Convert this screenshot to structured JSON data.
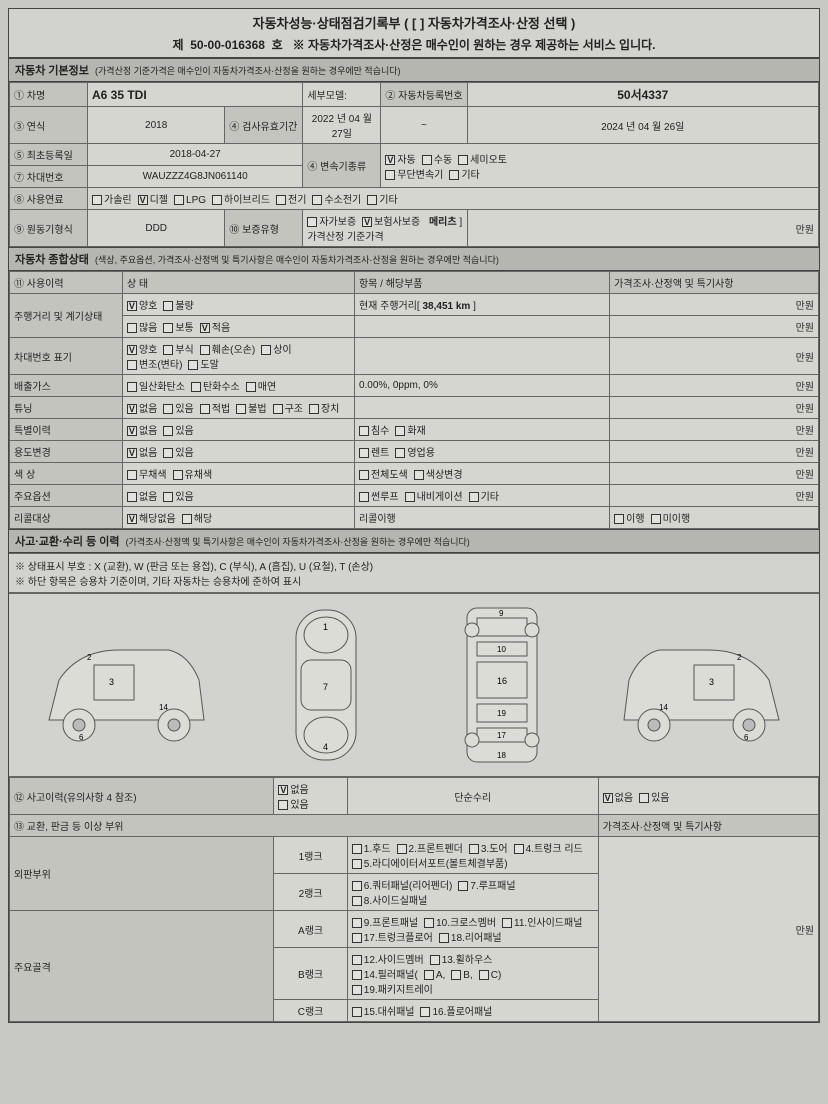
{
  "header": {
    "title": "자동차성능·상태점검기록부 ( [   ] 자동차가격조사·산정 선택 )",
    "doc_no_prefix": "제",
    "doc_no": "50-00-016368",
    "doc_no_suffix": "호",
    "subtitle_note": "※ 자동차가격조사·산정은 매수인이 원하는 경우 제공하는 서비스 입니다."
  },
  "section_basic": {
    "heading": "자동차 기본정보",
    "heading_note": "(가격산정 기준가격은 매수인이 자동차가격조사·산정을 원하는 경우에만 적습니다)",
    "row1": {
      "lbl1": "① 차명",
      "car_name": "A6 35 TDI",
      "lbl2": "세부모델:",
      "lbl3": "② 자동차등록번호",
      "reg_no": "50서4337"
    },
    "row2": {
      "lbl1": "③ 연식",
      "year": "2018",
      "lbl2": "④ 검사유효기간",
      "from": "2022 년 04 월 27일",
      "tilde": "~",
      "to": "2024 년 04 월 26일"
    },
    "row3": {
      "lbl1": "⑤ 최초등록일",
      "first_reg": "2018-04-27",
      "lbl2": "④ 변속기종류",
      "opts": [
        "자동",
        "수동",
        "세미오토",
        "무단변속기",
        "기타"
      ],
      "checked": "자동"
    },
    "row4": {
      "lbl1": "⑦ 차대번호",
      "vin": "WAUZZZ4G8JN061140"
    },
    "row5": {
      "lbl1": "⑧ 사용연료",
      "opts": [
        "가솔린",
        "디젤",
        "LPG",
        "하이브리드",
        "전기",
        "수소전기",
        "기타"
      ],
      "checked": "디젤"
    },
    "row6": {
      "lbl1": "⑨ 원동기형식",
      "engine": "DDD",
      "lbl2": "⑩ 보증유형",
      "opts": [
        "자가보증",
        "보험사보증"
      ],
      "checked": "보험사보증",
      "insurer_lbl": "메리츠",
      "price_lbl": "] 가격산정 기준가격",
      "won": "만원"
    }
  },
  "section_state": {
    "heading": "자동차 종합상태",
    "heading_note": "(색상, 주요옵션, 가격조사·산정액 및 특기사항은 매수인이 자동차가격조사·산정을 원하는 경우에만 적습니다)",
    "cols": {
      "c1": "⑪ 사용이력",
      "c2": "상  태",
      "c3": "항목 / 해당부품",
      "c4": "가격조사·산정액 및 특기사항"
    },
    "rows": [
      {
        "lbl": "주행거리 및 계기상태",
        "line1_opts": [
          "양호",
          "불량"
        ],
        "line1_checked": "양호",
        "line1_right_lbl": "현재 주행거리[",
        "line1_right_val": "38,451 km",
        "line1_right_suf": "]",
        "price": "만원",
        "line2_opts": [
          "많음",
          "보통",
          "적음"
        ],
        "line2_checked": "적음",
        "price2": "만원"
      },
      {
        "lbl": "차대번호 표기",
        "opts": [
          "양호",
          "부식",
          "훼손(오손)",
          "상이",
          "변조(변타)",
          "도말"
        ],
        "checked": "양호",
        "price": "만원"
      },
      {
        "lbl": "배출가스",
        "opts": [
          "일산화탄소",
          "탄화수소",
          "매연"
        ],
        "right": "0.00%,  0ppm,  0%",
        "price": "만원"
      },
      {
        "lbl": "튜닝",
        "opts": [
          "없음",
          "있음",
          "적법",
          "불법",
          "구조",
          "장치"
        ],
        "checked": "없음",
        "price": "만원"
      },
      {
        "lbl": "특별이력",
        "opts": [
          "없음",
          "있음"
        ],
        "checked": "없음",
        "right_opts": [
          "침수",
          "화재"
        ],
        "price": "만원"
      },
      {
        "lbl": "용도변경",
        "opts": [
          "없음",
          "있음"
        ],
        "checked": "없음",
        "right_opts": [
          "렌트",
          "영업용"
        ],
        "price": "만원"
      },
      {
        "lbl": "색  상",
        "opts": [
          "무채색",
          "유채색"
        ],
        "right_opts": [
          "전체도색",
          "색상변경"
        ],
        "price": "만원"
      },
      {
        "lbl": "주요옵션",
        "opts": [
          "없음",
          "있음"
        ],
        "right_opts": [
          "썬루프",
          "내비게이션",
          "기타"
        ],
        "price": "만원"
      },
      {
        "lbl": "리콜대상",
        "opts": [
          "해당없음",
          "해당"
        ],
        "checked": "해당없음",
        "right_lbl": "리콜이행",
        "price_opts": [
          "이행",
          "미이행"
        ]
      }
    ]
  },
  "section_history": {
    "heading": "사고·교환·수리 등 이력",
    "heading_note": "(가격조사·산정액 및 특기사항은 매수인이 자동차가격조사·산정을 원하는 경우에만 적습니다)",
    "legend1": "※ 상태표시 부호 : X (교환), W (판금 또는 용접), C (부식), A (흠집), U (요철), T (손상)",
    "legend2": "※ 하단 항목은 승용차 기준이며, 기타 자동차는 승용차에 준하여 표시",
    "row_accident": {
      "lbl": "⑫ 사고이력(유의사항 4 참조)",
      "opts": [
        "없음",
        "있음"
      ],
      "checked": "없음",
      "mid": "단순수리",
      "right_opts": [
        "없음",
        "있음"
      ],
      "right_checked": "없음"
    },
    "row_exchange_header": {
      "lbl": "⑬ 교환, 판금 등 이상 부위",
      "right": "가격조사·산정액 및 특기사항"
    },
    "outer": {
      "lbl": "외판부위",
      "rank1_lbl": "1랭크",
      "rank1_items": [
        "1.후드",
        "2.프론트펜더",
        "3.도어",
        "4.트렁크 리드",
        "5.라디에이터서포트(볼트체결부품)"
      ],
      "rank2_lbl": "2랭크",
      "rank2_items": [
        "6.쿼터패널(리어펜더)",
        "7.루프패널",
        "8.사이드실패널"
      ]
    },
    "frame": {
      "lbl": "주요골격",
      "a_lbl": "A랭크",
      "a_items": [
        "9.프론트패널",
        "10.크로스멤버",
        "11.인사이드패널",
        "17.트렁크플로어",
        "18.리어패널"
      ],
      "b_lbl": "B랭크",
      "b_items_line1": [
        "12.사이드멤버",
        "13.휠하우스"
      ],
      "b_items_line2_prefix": "14.필러패널(",
      "b_items_line2_sub": [
        "A,",
        "B,",
        "C)"
      ],
      "b_items_line2_suffix": "19.패키지트레이",
      "c_lbl": "C랭크",
      "c_items": [
        "15.대쉬패널",
        "16.플로어패널"
      ],
      "price": "만원"
    }
  },
  "colors": {
    "border": "#444",
    "header_bg": "#b6b6b0"
  }
}
